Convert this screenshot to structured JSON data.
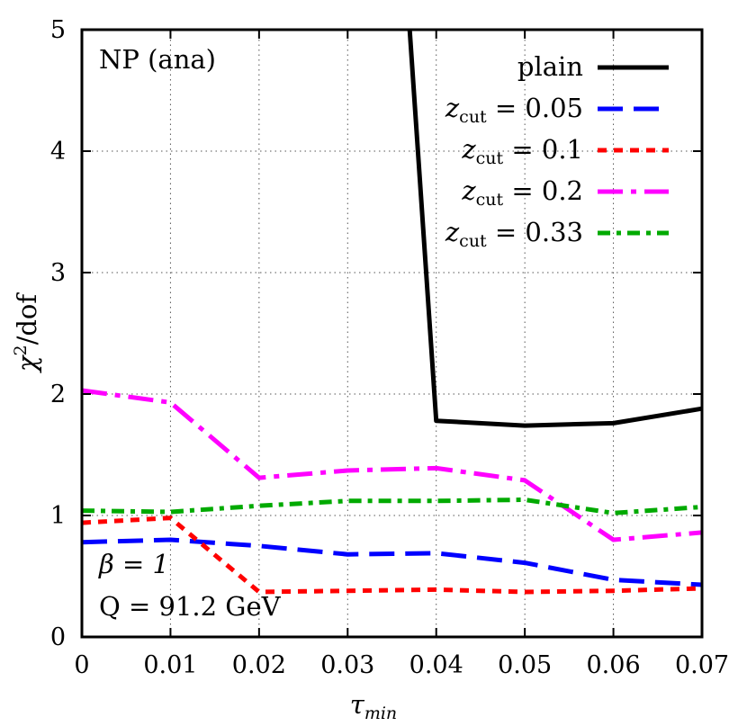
{
  "chart_data": {
    "type": "line",
    "annotations": {
      "top_left": "NP (ana)",
      "beta": "β = 1",
      "q": "Q = 91.2 GeV"
    },
    "xlabel": {
      "base": "τ",
      "sub": "min"
    },
    "ylabel": {
      "chi": "χ",
      "sup": "2",
      "rest": "/dof"
    },
    "xlim": [
      0,
      0.07
    ],
    "ylim": [
      0,
      5
    ],
    "xticks": [
      0,
      0.01,
      0.02,
      0.03,
      0.04,
      0.05,
      0.06,
      0.07
    ],
    "xtick_labels": [
      "0",
      "0.01",
      "0.02",
      "0.03",
      "0.04",
      "0.05",
      "0.06",
      "0.07"
    ],
    "yticks": [
      0,
      1,
      2,
      3,
      4,
      5
    ],
    "ytick_labels": [
      "0",
      "1",
      "2",
      "3",
      "4",
      "5"
    ],
    "grid": true,
    "legend_position": "top-right",
    "series": [
      {
        "name": "plain",
        "legend": {
          "base": "plain",
          "sub": "",
          "rest": ""
        },
        "color": "#000000",
        "dash": "",
        "x": [
          0.037,
          0.04,
          0.05,
          0.06,
          0.07
        ],
        "y": [
          5.0,
          1.78,
          1.74,
          1.76,
          1.88
        ]
      },
      {
        "name": "z_cut = 0.05",
        "legend": {
          "base": "z",
          "sub": "cut",
          "rest": " = 0.05"
        },
        "color": "#0000ff",
        "dash": "28,12",
        "x": [
          0,
          0.01,
          0.02,
          0.03,
          0.04,
          0.05,
          0.06,
          0.07
        ],
        "y": [
          0.78,
          0.8,
          0.75,
          0.68,
          0.69,
          0.61,
          0.47,
          0.43
        ]
      },
      {
        "name": "z_cut = 0.1",
        "legend": {
          "base": "z",
          "sub": "cut",
          "rest": " = 0.1"
        },
        "color": "#ff0000",
        "dash": "10,8",
        "x": [
          0,
          0.01,
          0.02,
          0.03,
          0.04,
          0.05,
          0.06,
          0.07
        ],
        "y": [
          0.94,
          0.98,
          0.37,
          0.38,
          0.39,
          0.37,
          0.38,
          0.4
        ]
      },
      {
        "name": "z_cut = 0.2",
        "legend": {
          "base": "z",
          "sub": "cut",
          "rest": " = 0.2"
        },
        "color": "#ff00ff",
        "dash": "28,9,6,9",
        "x": [
          0,
          0.01,
          0.02,
          0.03,
          0.04,
          0.05,
          0.06,
          0.07
        ],
        "y": [
          2.03,
          1.93,
          1.31,
          1.37,
          1.39,
          1.29,
          0.8,
          0.86
        ]
      },
      {
        "name": "z_cut = 0.33",
        "legend": {
          "base": "z",
          "sub": "cut",
          "rest": " = 0.33"
        },
        "color": "#00aa00",
        "dash": "14,7,5,7",
        "x": [
          0,
          0.01,
          0.02,
          0.03,
          0.04,
          0.05,
          0.06,
          0.07
        ],
        "y": [
          1.04,
          1.03,
          1.08,
          1.12,
          1.12,
          1.13,
          1.02,
          1.07
        ]
      }
    ]
  }
}
